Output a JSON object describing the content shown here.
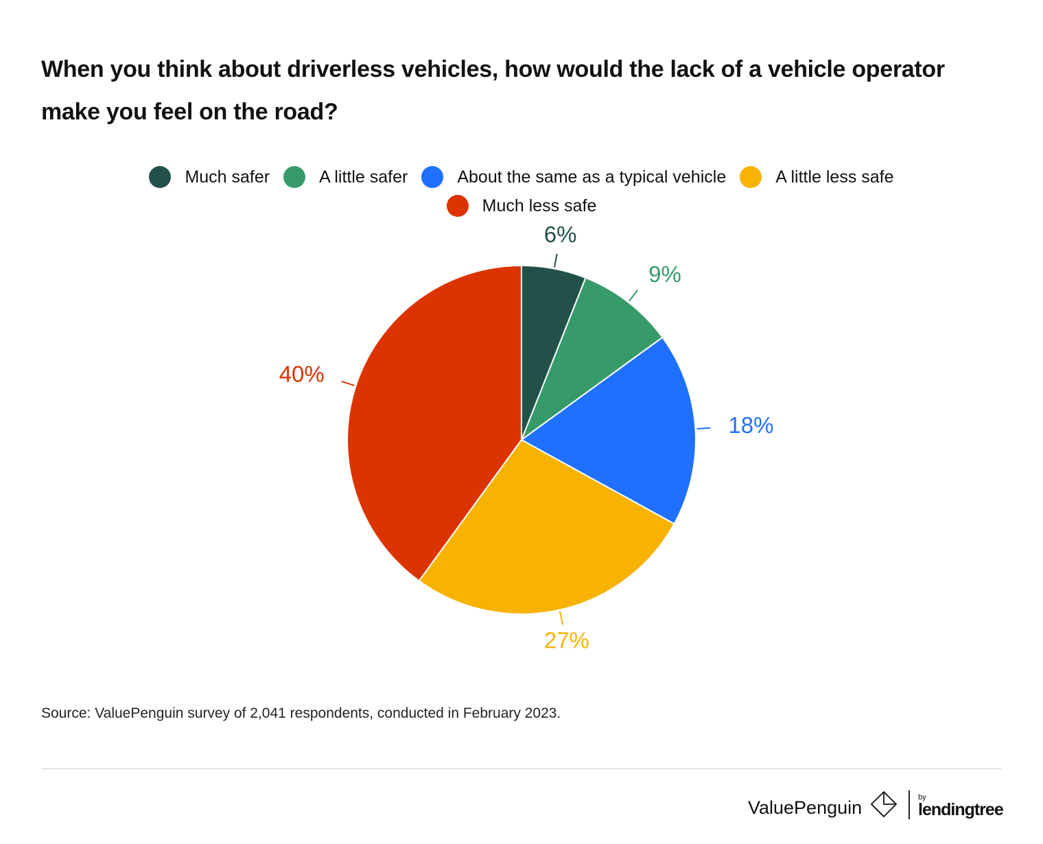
{
  "title": "When you think about driverless vehicles, how would the lack of a vehicle operator make you feel on the road?",
  "source": "Source: ValuePenguin survey of 2,041 respondents, conducted in February 2023.",
  "brand": {
    "name": "ValuePenguin",
    "by": "by",
    "parent": "lendingtree",
    "logo_icon": "valuepenguin-diamond-icon"
  },
  "colors": {
    "much_safer": "#22514a",
    "a_little_safer": "#369b69",
    "about_same": "#2070ff",
    "a_little_less_safe": "#f8b302",
    "much_less_safe": "#dc3400"
  },
  "chart_data": {
    "type": "pie",
    "title": "When you think about driverless vehicles, how would the lack of a vehicle operator make you feel on the road?",
    "categories": [
      "Much safer",
      "A little safer",
      "About the same as a typical vehicle",
      "A little less safe",
      "Much less safe"
    ],
    "values": [
      6,
      9,
      18,
      27,
      40
    ],
    "labels": [
      "6%",
      "9%",
      "18%",
      "27%",
      "40%"
    ],
    "colors": [
      "#22514a",
      "#369b69",
      "#2070ff",
      "#f8b302",
      "#dc3400"
    ],
    "legend_position": "top-center",
    "start_angle": "12 o'clock",
    "direction": "clockwise",
    "unit": "%"
  }
}
